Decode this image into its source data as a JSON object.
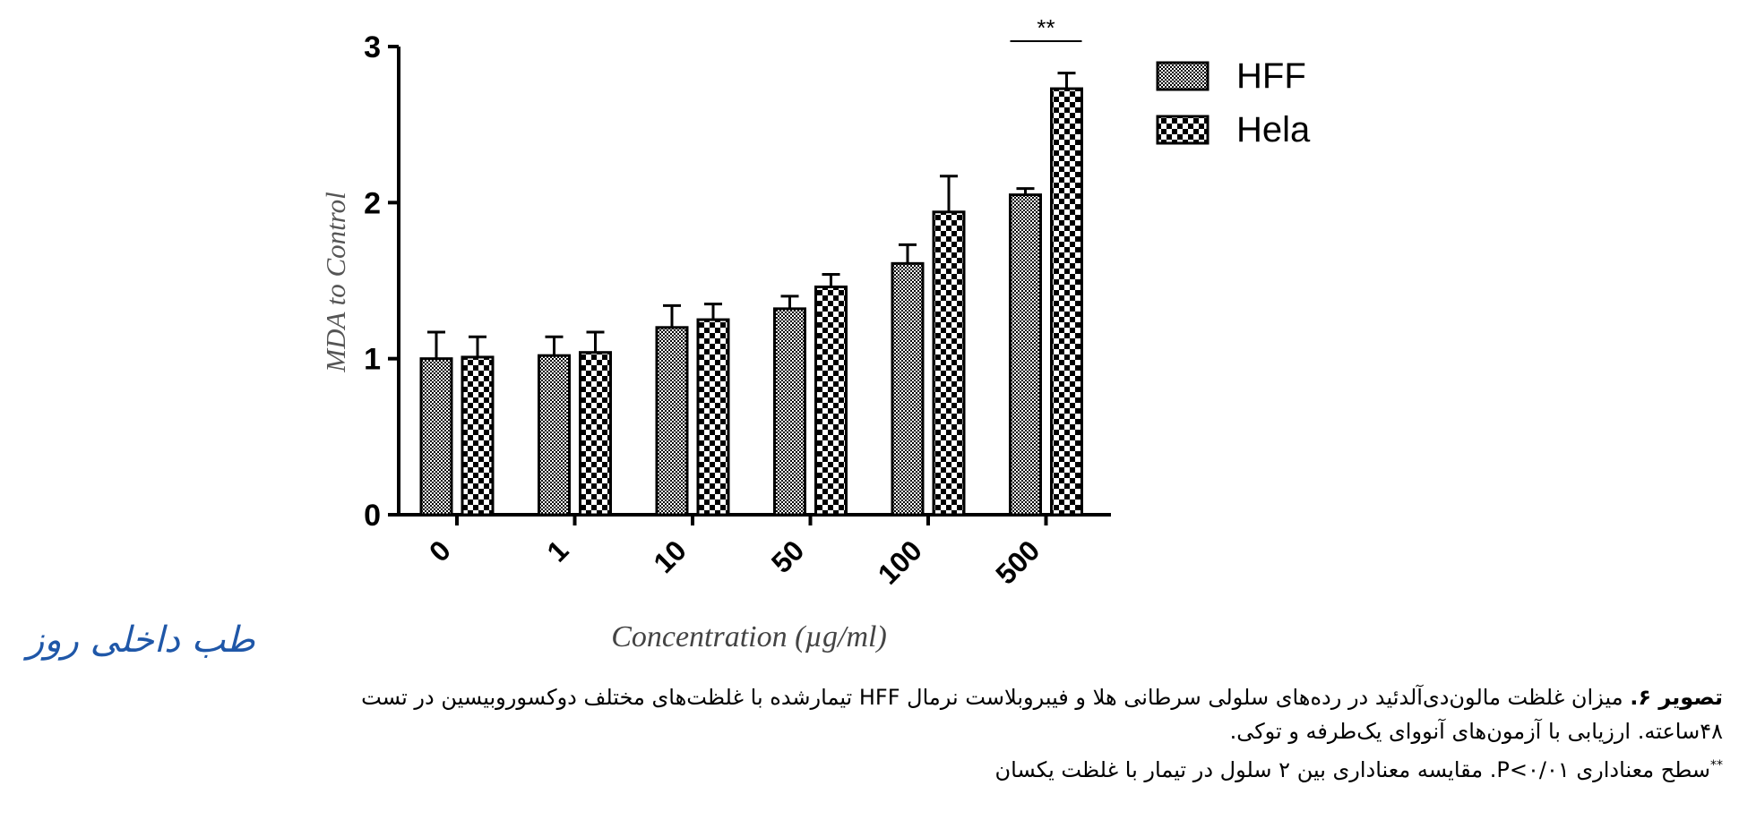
{
  "chart_data": {
    "type": "bar",
    "categories": [
      "0",
      "1",
      "10",
      "50",
      "100",
      "500"
    ],
    "series": [
      {
        "name": "HFF",
        "values": [
          1.0,
          1.02,
          1.2,
          1.32,
          1.61,
          2.05
        ],
        "errors": [
          0.17,
          0.12,
          0.14,
          0.08,
          0.12,
          0.04
        ],
        "pattern": "fine-checker"
      },
      {
        "name": "Hela",
        "values": [
          1.01,
          1.04,
          1.25,
          1.46,
          1.94,
          2.73
        ],
        "errors": [
          0.13,
          0.13,
          0.1,
          0.08,
          0.23,
          0.1
        ],
        "pattern": "coarse-checker"
      }
    ],
    "xlabel": "Concentration (µg/ml)",
    "ylabel": "MDA to Control",
    "ylim": [
      0,
      3
    ],
    "yticks": [
      "0",
      "1",
      "2",
      "3"
    ],
    "significance": {
      "category": "500",
      "label": "**"
    },
    "legend_position": "top-right",
    "grid": false
  },
  "watermark": "طب داخلی روز",
  "caption": {
    "label": "تصویر ۶.",
    "line1": " میزان غلظت مالون‌دی‌آلدئید در رده‌های سلولی سرطانی هلا و فیبروبلاست نرمال HFF تیمارشده با غلظت‌های مختلف دوکسوروبیسین در تست",
    "line2": "۴۸ساعته. ارزیابی با آزمون‌های آنووای یک‌طرفه و توکی.",
    "note_mark": "**",
    "note": "سطح معناداری P<۰/۰۱. مقایسه معناداری بین ۲ سلول در تیمار با غلظت یکسان"
  }
}
